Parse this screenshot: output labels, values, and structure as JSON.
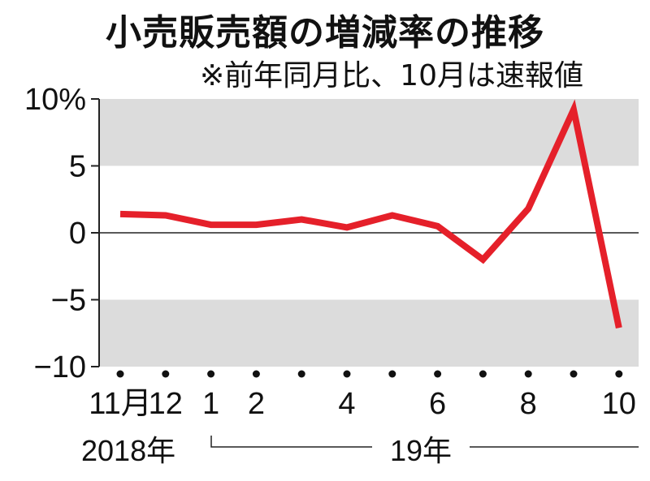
{
  "title": "小売販売額の増減率の推移",
  "subtitle": "※前年同月比、10月は速報値",
  "chart_data": {
    "type": "line",
    "title": "小売販売額の増減率の推移",
    "subtitle": "※前年同月比、10月は速報値",
    "ylabel": "",
    "xlabel": "",
    "ylim": [
      -10,
      10
    ],
    "yticks": [
      10,
      5,
      0,
      -5,
      -10
    ],
    "ytick_labels": [
      "10%",
      "5",
      "0",
      "−5",
      "−10"
    ],
    "x": [
      "2018-11",
      "2018-12",
      "2019-01",
      "2019-02",
      "2019-03",
      "2019-04",
      "2019-05",
      "2019-06",
      "2019-07",
      "2019-08",
      "2019-09",
      "2019-10"
    ],
    "xtick_labels": [
      "11月",
      "12",
      "1",
      "2",
      "",
      "4",
      "",
      "6",
      "",
      "8",
      "",
      "10"
    ],
    "year_labels": [
      "2018年",
      "19年"
    ],
    "series": [
      {
        "values": [
          1.4,
          1.3,
          0.6,
          0.6,
          1.0,
          0.4,
          1.3,
          0.5,
          -2.0,
          1.8,
          9.2,
          -7.1
        ]
      }
    ],
    "bands": [
      [
        5,
        10
      ],
      [
        -10,
        -5
      ]
    ],
    "line_color": "#e5202a",
    "band_color": "#dcdcdc",
    "grid": false,
    "legend": "none"
  }
}
